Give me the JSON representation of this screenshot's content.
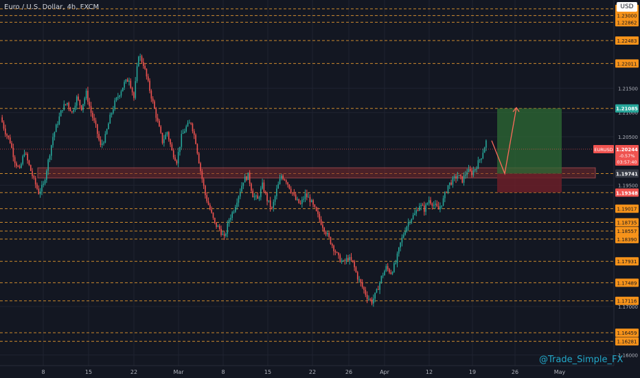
{
  "header": {
    "title": "Euro / U.S. Dollar, 4h, FXCM",
    "currency": "USD"
  },
  "watermark": "@Trade_Simple_FX",
  "colors": {
    "background": "#131722",
    "grid": "#1f2330",
    "level": "#f0a030",
    "level_label_bg": "#f7931a",
    "up": "#26a69a",
    "down": "#ef5350",
    "zone_fill": "#7a2a2e",
    "zone_stroke": "#ff6b6b",
    "target_fill": "#2e6b34",
    "stop_fill": "#6b1f28",
    "arrow": "#ff6b5b"
  },
  "chart_data": {
    "type": "candlestick",
    "title": "Euro / U.S. Dollar, 4h, FXCM",
    "symbol": "EURUSD",
    "currency": "USD",
    "x_ticks": [
      "8",
      "15",
      "22",
      "Mar",
      "8",
      "15",
      "22",
      "26",
      "Apr",
      "12",
      "19",
      "26",
      "May"
    ],
    "y_ticks": [
      "1.23000",
      "1.21500",
      "1.21000",
      "1.20500",
      "1.19500",
      "1.17000",
      "1.16000"
    ],
    "ylim": [
      1.1578,
      1.2332
    ],
    "horizontal_levels": [
      "1.23138",
      "1.23000",
      "1.22862",
      "1.22483",
      "1.22011",
      "1.21085",
      "1.19741",
      "1.19348",
      "1.19017",
      "1.18735",
      "1.18557",
      "1.18390",
      "1.17931",
      "1.17489",
      "1.17116",
      "1.16459",
      "1.16281"
    ],
    "highlighted_levels": [
      "1.21085",
      "1.19741",
      "1.19348"
    ],
    "current_price": {
      "symbol": "EURUSD",
      "price": "1.20244",
      "change": "-0.57%",
      "countdown": "03:57:40"
    },
    "support_zone": {
      "low": 1.1965,
      "high": 1.1986
    },
    "trade_plan": {
      "entry": 1.1974,
      "target": 1.21085,
      "stop": 1.1935
    },
    "projection": {
      "from": 1.2042,
      "pullback": 1.1974,
      "to": 1.211
    },
    "price_path": [
      1.209,
      1.206,
      1.204,
      1.2,
      1.198,
      1.202,
      1.199,
      1.196,
      1.1935,
      1.195,
      1.2,
      1.205,
      1.208,
      1.211,
      1.212,
      1.21,
      1.213,
      1.211,
      1.214,
      1.21,
      1.207,
      1.203,
      1.205,
      1.209,
      1.212,
      1.214,
      1.216,
      1.217,
      1.213,
      1.222,
      1.22,
      1.216,
      1.212,
      1.208,
      1.204,
      1.206,
      1.202,
      1.2,
      1.205,
      1.207,
      1.208,
      1.204,
      1.198,
      1.193,
      1.19,
      1.187,
      1.186,
      1.184,
      1.188,
      1.19,
      1.193,
      1.196,
      1.197,
      1.193,
      1.192,
      1.195,
      1.192,
      1.19,
      1.194,
      1.197,
      1.196,
      1.194,
      1.192,
      1.191,
      1.193,
      1.192,
      1.19,
      1.188,
      1.186,
      1.184,
      1.182,
      1.18,
      1.179,
      1.18,
      1.179,
      1.176,
      1.174,
      1.172,
      1.171,
      1.173,
      1.176,
      1.178,
      1.177,
      1.179,
      1.183,
      1.186,
      1.188,
      1.189,
      1.191,
      1.19,
      1.192,
      1.191,
      1.19,
      1.192,
      1.195,
      1.196,
      1.197,
      1.196,
      1.198,
      1.1975,
      1.199,
      1.201,
      1.204
    ],
    "grid": true,
    "legend": "none"
  }
}
